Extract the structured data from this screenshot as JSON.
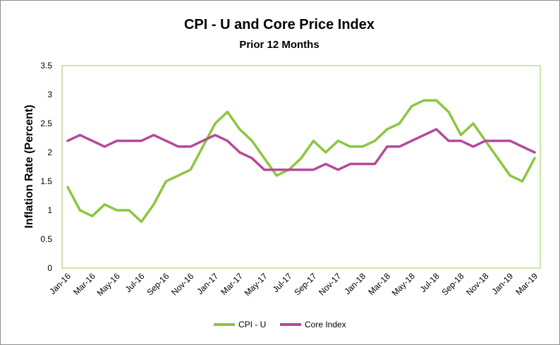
{
  "chart_data": {
    "type": "line",
    "title": "CPI - U and Core Price Index",
    "subtitle": "Prior 12 Months",
    "ylabel": "Inflation Rate (Percent)",
    "xlabel": "",
    "ylim": [
      0,
      3.5
    ],
    "yticks": [
      "0",
      "0.5",
      "1",
      "1.5",
      "2",
      "2.5",
      "3",
      "3.5"
    ],
    "x_tick_labels": [
      "Jan-16",
      "Mar-16",
      "May-16",
      "Jul-16",
      "Sep-16",
      "Nov-16",
      "Jan-17",
      "Mar-17",
      "May-17",
      "Jul-17",
      "Sep-17",
      "Nov-17",
      "Jan-18",
      "Mar-18",
      "May-18",
      "Jul-18",
      "Sep-18",
      "Nov-18",
      "Jan-19",
      "Mar-19"
    ],
    "x": [
      "Jan-16",
      "Feb-16",
      "Mar-16",
      "Apr-16",
      "May-16",
      "Jun-16",
      "Jul-16",
      "Aug-16",
      "Sep-16",
      "Oct-16",
      "Nov-16",
      "Dec-16",
      "Jan-17",
      "Feb-17",
      "Mar-17",
      "Apr-17",
      "May-17",
      "Jun-17",
      "Jul-17",
      "Aug-17",
      "Sep-17",
      "Oct-17",
      "Nov-17",
      "Dec-17",
      "Jan-18",
      "Feb-18",
      "Mar-18",
      "Apr-18",
      "May-18",
      "Jun-18",
      "Jul-18",
      "Aug-18",
      "Sep-18",
      "Oct-18",
      "Nov-18",
      "Dec-18",
      "Jan-19",
      "Feb-19",
      "Mar-19"
    ],
    "series": [
      {
        "name": "CPI - U",
        "color": "#8cc63f",
        "values": [
          1.4,
          1.0,
          0.9,
          1.1,
          1.0,
          1.0,
          0.8,
          1.1,
          1.5,
          1.6,
          1.7,
          2.1,
          2.5,
          2.7,
          2.4,
          2.2,
          1.9,
          1.6,
          1.7,
          1.9,
          2.2,
          2.0,
          2.2,
          2.1,
          2.1,
          2.2,
          2.4,
          2.5,
          2.8,
          2.9,
          2.9,
          2.7,
          2.3,
          2.5,
          2.2,
          1.9,
          1.6,
          1.5,
          1.9
        ]
      },
      {
        "name": "Core Index",
        "color": "#b5499b",
        "values": [
          2.2,
          2.3,
          2.2,
          2.1,
          2.2,
          2.2,
          2.2,
          2.3,
          2.2,
          2.1,
          2.1,
          2.2,
          2.3,
          2.2,
          2.0,
          1.9,
          1.7,
          1.7,
          1.7,
          1.7,
          1.7,
          1.8,
          1.7,
          1.8,
          1.8,
          1.8,
          2.1,
          2.1,
          2.2,
          2.3,
          2.4,
          2.2,
          2.2,
          2.1,
          2.2,
          2.2,
          2.2,
          2.1,
          2.0
        ]
      }
    ],
    "grid": false,
    "legend": "bottom"
  }
}
